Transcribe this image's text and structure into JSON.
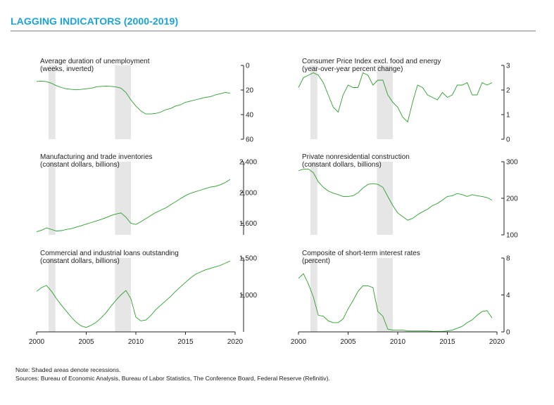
{
  "header": {
    "title": "LAGGING INDICATORS (2000-2019)"
  },
  "footnotes": {
    "note": "Note: Shaded areas denote recessions.",
    "sources": "Sources: Bureau of Economic Analysis, Bureau of Labor Statistics, The Conference Board, Federal Reserve (Refinitiv)."
  },
  "colors": {
    "line": "#2ca02c",
    "recession": "#e6e6e6",
    "axis": "#222222",
    "accent": "#1aa3d9"
  },
  "chart_data": [
    {
      "type": "line",
      "title": "Average duration of unemployment",
      "subtitle": "(weeks, inverted)",
      "inverted": true,
      "ylim": [
        0,
        60
      ],
      "yticks": [
        {
          "v": 0,
          "label": "0"
        },
        {
          "v": 20,
          "label": "20"
        },
        {
          "v": 40,
          "label": "40"
        },
        {
          "v": 60,
          "label": "60"
        }
      ],
      "xlim": [
        2000,
        2020
      ],
      "recessions": [
        [
          2001.2,
          2001.9
        ],
        [
          2007.9,
          2009.5
        ]
      ],
      "series": [
        {
          "x": [
            2000,
            2000.5,
            2001,
            2001.5,
            2002,
            2002.5,
            2003,
            2003.5,
            2004,
            2004.5,
            2005,
            2005.5,
            2006,
            2006.5,
            2007,
            2007.5,
            2008,
            2008.5,
            2009,
            2009.5,
            2010,
            2010.5,
            2011,
            2011.5,
            2012,
            2012.5,
            2013,
            2013.5,
            2014,
            2014.5,
            2015,
            2015.5,
            2016,
            2016.5,
            2017,
            2017.5,
            2018,
            2018.5,
            2019,
            2019.5
          ],
          "values": [
            13,
            12.8,
            13.2,
            14.5,
            16.5,
            18,
            19,
            19.5,
            19.8,
            19.5,
            19,
            18.5,
            17.5,
            17,
            16.8,
            17,
            17.5,
            18.5,
            22,
            28,
            33,
            37,
            39.5,
            39.5,
            39,
            38,
            36,
            35,
            33,
            32,
            30,
            29,
            28,
            27,
            26,
            25.5,
            24,
            23,
            22,
            22.5
          ]
        }
      ]
    },
    {
      "type": "line",
      "title": "Consumer Price Index excl. food and energy",
      "subtitle": "(year-over-year percent change)",
      "inverted": false,
      "ylim": [
        0,
        3
      ],
      "yticks": [
        {
          "v": 0,
          "label": "0"
        },
        {
          "v": 1,
          "label": "1"
        },
        {
          "v": 2,
          "label": "2"
        },
        {
          "v": 3,
          "label": "3"
        }
      ],
      "xlim": [
        2000,
        2020
      ],
      "recessions": [
        [
          2001.2,
          2001.9
        ],
        [
          2007.9,
          2009.5
        ]
      ],
      "series": [
        {
          "x": [
            2000,
            2000.5,
            2001,
            2001.5,
            2002,
            2002.5,
            2003,
            2003.5,
            2004,
            2004.5,
            2005,
            2005.5,
            2006,
            2006.5,
            2007,
            2007.5,
            2008,
            2008.5,
            2009,
            2009.5,
            2010,
            2010.5,
            2011,
            2011.5,
            2012,
            2012.5,
            2013,
            2013.5,
            2014,
            2014.5,
            2015,
            2015.5,
            2016,
            2016.5,
            2017,
            2017.5,
            2018,
            2018.5,
            2019,
            2019.5
          ],
          "values": [
            2.1,
            2.5,
            2.6,
            2.7,
            2.6,
            2.3,
            1.8,
            1.3,
            1.1,
            1.8,
            2.2,
            2.1,
            2.1,
            2.7,
            2.6,
            2.2,
            2.4,
            2.4,
            1.8,
            1.5,
            1.3,
            0.9,
            0.7,
            1.5,
            2.2,
            2.1,
            1.8,
            1.7,
            1.6,
            1.9,
            1.7,
            1.8,
            2.2,
            2.2,
            2.3,
            1.8,
            1.8,
            2.3,
            2.2,
            2.3
          ]
        }
      ]
    },
    {
      "type": "line",
      "title": "Manufacturing and trade inventories",
      "subtitle": "(constant dollars, billions)",
      "inverted": false,
      "ylim": [
        1450,
        2400
      ],
      "yticks": [
        {
          "v": 1600,
          "label": "1,600"
        },
        {
          "v": 2000,
          "label": "2,000"
        },
        {
          "v": 2400,
          "label": "2,400"
        }
      ],
      "xlim": [
        2000,
        2020
      ],
      "recessions": [
        [
          2001.2,
          2001.9
        ],
        [
          2007.9,
          2009.5
        ]
      ],
      "series": [
        {
          "x": [
            2000,
            2000.5,
            2001,
            2001.5,
            2002,
            2002.5,
            2003,
            2003.5,
            2004,
            2004.5,
            2005,
            2005.5,
            2006,
            2006.5,
            2007,
            2007.5,
            2008,
            2008.5,
            2009,
            2009.5,
            2010,
            2010.5,
            2011,
            2011.5,
            2012,
            2012.5,
            2013,
            2013.5,
            2014,
            2014.5,
            2015,
            2015.5,
            2016,
            2016.5,
            2017,
            2017.5,
            2018,
            2018.5,
            2019,
            2019.5
          ],
          "values": [
            1490,
            1510,
            1540,
            1520,
            1500,
            1505,
            1520,
            1530,
            1550,
            1570,
            1590,
            1610,
            1630,
            1650,
            1675,
            1700,
            1720,
            1735,
            1680,
            1600,
            1585,
            1620,
            1660,
            1700,
            1740,
            1770,
            1800,
            1840,
            1880,
            1920,
            1960,
            1990,
            2010,
            2030,
            2050,
            2070,
            2080,
            2100,
            2130,
            2170
          ]
        }
      ]
    },
    {
      "type": "line",
      "title": "Private nonresidential construction",
      "subtitle": "(constant dollars, billions)",
      "inverted": false,
      "ylim": [
        100,
        300
      ],
      "yticks": [
        {
          "v": 100,
          "label": "100"
        },
        {
          "v": 200,
          "label": "200"
        },
        {
          "v": 300,
          "label": "300"
        }
      ],
      "xlim": [
        2000,
        2020
      ],
      "recessions": [
        [
          2001.2,
          2001.9
        ],
        [
          2007.9,
          2009.5
        ]
      ],
      "series": [
        {
          "x": [
            2000,
            2000.5,
            2001,
            2001.5,
            2002,
            2002.5,
            2003,
            2003.5,
            2004,
            2004.5,
            2005,
            2005.5,
            2006,
            2006.5,
            2007,
            2007.5,
            2008,
            2008.5,
            2009,
            2009.5,
            2010,
            2010.5,
            2011,
            2011.5,
            2012,
            2012.5,
            2013,
            2013.5,
            2014,
            2014.5,
            2015,
            2015.5,
            2016,
            2016.5,
            2017,
            2017.5,
            2018,
            2018.5,
            2019,
            2019.5
          ],
          "values": [
            275,
            280,
            280,
            270,
            245,
            230,
            220,
            214,
            210,
            205,
            205,
            207,
            215,
            228,
            238,
            240,
            238,
            230,
            205,
            180,
            160,
            150,
            140,
            145,
            155,
            163,
            170,
            180,
            186,
            195,
            205,
            207,
            213,
            210,
            205,
            210,
            207,
            205,
            202,
            195
          ]
        }
      ]
    },
    {
      "type": "line",
      "title": "Commercial and industrial loans outstanding",
      "subtitle": "(constant dollars, billions)",
      "inverted": false,
      "ylim": [
        500,
        1500
      ],
      "yticks": [
        {
          "v": 1000,
          "label": "1,000"
        },
        {
          "v": 1500,
          "label": "1,500"
        }
      ],
      "xlim": [
        2000,
        2020
      ],
      "recessions": [
        [
          2001.2,
          2001.9
        ],
        [
          2007.9,
          2009.5
        ]
      ],
      "series": [
        {
          "x": [
            2000,
            2000.5,
            2001,
            2001.5,
            2002,
            2002.5,
            2003,
            2003.5,
            2004,
            2004.5,
            2005,
            2005.5,
            2006,
            2006.5,
            2007,
            2007.5,
            2008,
            2008.5,
            2009,
            2009.5,
            2010,
            2010.5,
            2011,
            2011.5,
            2012,
            2012.5,
            2013,
            2013.5,
            2014,
            2014.5,
            2015,
            2015.5,
            2016,
            2016.5,
            2017,
            2017.5,
            2018,
            2018.5,
            2019,
            2019.5
          ],
          "values": [
            1050,
            1100,
            1130,
            1050,
            950,
            860,
            780,
            700,
            630,
            580,
            560,
            590,
            630,
            690,
            760,
            850,
            930,
            1000,
            1060,
            950,
            700,
            650,
            660,
            720,
            800,
            860,
            920,
            980,
            1050,
            1110,
            1170,
            1230,
            1280,
            1310,
            1340,
            1360,
            1380,
            1400,
            1430,
            1460
          ]
        }
      ]
    },
    {
      "type": "line",
      "title": "Composite of short-term interest rates",
      "subtitle": "(percent)",
      "inverted": false,
      "ylim": [
        0,
        8
      ],
      "yticks": [
        {
          "v": 0,
          "label": "0"
        },
        {
          "v": 4,
          "label": "4"
        },
        {
          "v": 8,
          "label": "8"
        }
      ],
      "xlim": [
        2000,
        2020
      ],
      "recessions": [
        [
          2001.2,
          2001.9
        ],
        [
          2007.9,
          2009.5
        ]
      ],
      "series": [
        {
          "x": [
            2000,
            2000.5,
            2001,
            2001.5,
            2002,
            2002.5,
            2003,
            2003.5,
            2004,
            2004.5,
            2005,
            2005.5,
            2006,
            2006.5,
            2007,
            2007.5,
            2008,
            2008.5,
            2009,
            2009.5,
            2010,
            2010.5,
            2011,
            2011.5,
            2012,
            2012.5,
            2013,
            2013.5,
            2014,
            2014.5,
            2015,
            2015.5,
            2016,
            2016.5,
            2017,
            2017.5,
            2018,
            2018.5,
            2019,
            2019.5
          ],
          "values": [
            5.8,
            6.3,
            5.2,
            3.8,
            1.8,
            1.7,
            1.2,
            1.0,
            1.0,
            1.4,
            2.5,
            3.4,
            4.4,
            5.0,
            5.0,
            4.8,
            2.2,
            1.7,
            0.3,
            0.2,
            0.2,
            0.2,
            0.1,
            0.1,
            0.1,
            0.1,
            0.1,
            0.05,
            0.05,
            0.05,
            0.1,
            0.2,
            0.4,
            0.6,
            1.0,
            1.3,
            1.8,
            2.2,
            2.3,
            1.5
          ]
        }
      ]
    }
  ],
  "x_axes": [
    {
      "ticks": [
        {
          "v": 2000,
          "label": "2000"
        },
        {
          "v": 2005,
          "label": "2005"
        },
        {
          "v": 2010,
          "label": "2010"
        },
        {
          "v": 2015,
          "label": "2015"
        },
        {
          "v": 2020,
          "label": "2020"
        }
      ]
    },
    {
      "ticks": [
        {
          "v": 2000,
          "label": "2000"
        },
        {
          "v": 2005,
          "label": "2005"
        },
        {
          "v": 2010,
          "label": "2010"
        },
        {
          "v": 2015,
          "label": "2015"
        },
        {
          "v": 2020,
          "label": "2020"
        }
      ]
    }
  ]
}
